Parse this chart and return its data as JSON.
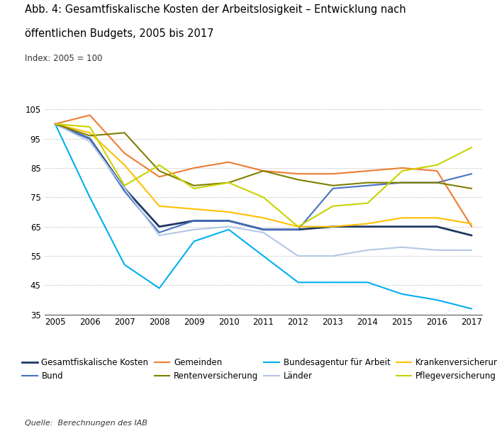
{
  "title_line1": "Abb. 4: Gesamtfiskalische Kosten der Arbeitslosigkeit – Entwicklung nach",
  "title_line2": "öffentlichen Budgets, 2005 bis 2017",
  "subtitle": "Index: 2005 = 100",
  "source": "Quelle:  Berechnungen des IAB",
  "years": [
    2005,
    2006,
    2007,
    2008,
    2009,
    2010,
    2011,
    2012,
    2013,
    2014,
    2015,
    2016,
    2017
  ],
  "series": [
    {
      "name": "Gesamtfiskalische Kosten",
      "color": "#1f3864",
      "linewidth": 2.0,
      "values": [
        100,
        95,
        78,
        65,
        67,
        67,
        64,
        64,
        65,
        65,
        65,
        65,
        62
      ]
    },
    {
      "name": "Bundesagentur für Arbeit",
      "color": "#00b0f0",
      "linewidth": 1.5,
      "values": [
        100,
        75,
        52,
        44,
        60,
        64,
        55,
        46,
        46,
        46,
        42,
        40,
        37
      ]
    },
    {
      "name": "Bund",
      "color": "#4472c4",
      "linewidth": 1.5,
      "values": [
        100,
        95,
        77,
        63,
        67,
        67,
        64,
        64,
        78,
        79,
        80,
        80,
        83
      ]
    },
    {
      "name": "Länder",
      "color": "#b4c7e7",
      "linewidth": 1.5,
      "values": [
        100,
        94,
        78,
        62,
        64,
        65,
        63,
        55,
        55,
        57,
        58,
        57,
        57
      ]
    },
    {
      "name": "Gemeinden",
      "color": "#ed7d31",
      "linewidth": 1.5,
      "values": [
        100,
        103,
        90,
        82,
        85,
        87,
        84,
        83,
        83,
        84,
        85,
        84,
        65
      ]
    },
    {
      "name": "Krankenversicherung",
      "color": "#ffc000",
      "linewidth": 1.5,
      "values": [
        100,
        97,
        86,
        72,
        71,
        70,
        68,
        65,
        65,
        66,
        68,
        68,
        66
      ]
    },
    {
      "name": "Rentenversicherung",
      "color": "#7f7f00",
      "linewidth": 1.5,
      "values": [
        100,
        96,
        97,
        84,
        79,
        80,
        84,
        81,
        79,
        80,
        80,
        80,
        78
      ]
    },
    {
      "name": "Pflegeversicherung",
      "color": "#c9d200",
      "linewidth": 1.5,
      "values": [
        100,
        99,
        79,
        86,
        78,
        80,
        75,
        65,
        72,
        73,
        84,
        86,
        92
      ]
    }
  ],
  "legend_order_col1": [
    "Gesamtfiskalische Kosten",
    "Bundesagentur für Arbeit"
  ],
  "legend_order_col2": [
    "Bund",
    "Länder"
  ],
  "legend_order_col3": [
    "Gemeinden",
    "Krankenversicherung"
  ],
  "legend_order_col4": [
    "Rentenversicherung",
    "Pflegeversicherung"
  ],
  "ylim": [
    35,
    107
  ],
  "yticks": [
    35,
    45,
    55,
    65,
    75,
    85,
    95,
    105
  ],
  "figsize": [
    7.01,
    6.08
  ],
  "dpi": 100
}
